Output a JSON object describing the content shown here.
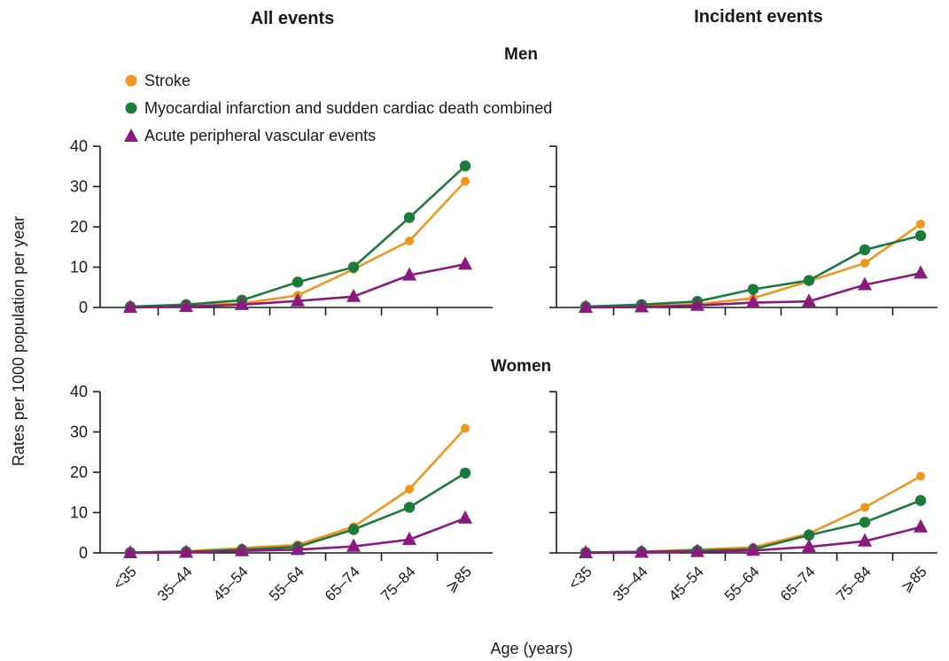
{
  "chart_data": {
    "type": "line",
    "column_titles": [
      "All events",
      "Incident events"
    ],
    "row_titles": [
      "Men",
      "Women"
    ],
    "categories": [
      "<35",
      "35–44",
      "45–54",
      "55–64",
      "65–74",
      "75–84",
      "⩾85"
    ],
    "xlabel": "Age (years)",
    "ylabel": "Rates per 1000 population per year",
    "ylim": [
      0,
      40
    ],
    "yticks": [
      0,
      10,
      20,
      30,
      40
    ],
    "grid": false,
    "legend": {
      "placement": "top-left",
      "entries": [
        {
          "name": "Stroke",
          "color": "#f0961e",
          "marker": "circle"
        },
        {
          "name": "Myocardial infarction and sudden cardiac death combined",
          "color": "#1b7a3c",
          "marker": "circle"
        },
        {
          "name": "Acute peripheral vascular events",
          "color": "#8b1a7e",
          "marker": "triangle"
        }
      ]
    },
    "panels": [
      {
        "column": "All events",
        "row": "Men",
        "series": [
          {
            "name": "Stroke",
            "values": [
              0.1,
              0.4,
              1.0,
              3.0,
              9.5,
              16.5,
              31.3
            ]
          },
          {
            "name": "Myocardial infarction and sudden cardiac death combined",
            "values": [
              0.2,
              0.7,
              1.8,
              6.3,
              10.0,
              22.3,
              35.1
            ]
          },
          {
            "name": "Acute peripheral vascular events",
            "values": [
              0.0,
              0.2,
              0.7,
              1.6,
              2.7,
              8.0,
              10.7
            ]
          }
        ]
      },
      {
        "column": "Incident events",
        "row": "Men",
        "series": [
          {
            "name": "Stroke",
            "values": [
              0.1,
              0.4,
              0.8,
              2.3,
              6.5,
              11.0,
              20.7
            ]
          },
          {
            "name": "Myocardial infarction and sudden cardiac death combined",
            "values": [
              0.2,
              0.7,
              1.5,
              4.5,
              6.7,
              14.3,
              17.8
            ]
          },
          {
            "name": "Acute peripheral vascular events",
            "values": [
              0.0,
              0.1,
              0.5,
              1.2,
              1.5,
              5.6,
              8.5
            ]
          }
        ]
      },
      {
        "column": "All events",
        "row": "Women",
        "series": [
          {
            "name": "Stroke",
            "values": [
              0.1,
              0.4,
              1.2,
              2.0,
              6.5,
              15.8,
              30.9
            ]
          },
          {
            "name": "Myocardial infarction and sudden cardiac death combined",
            "values": [
              0.1,
              0.3,
              0.8,
              1.5,
              5.8,
              11.3,
              19.8
            ]
          },
          {
            "name": "Acute peripheral vascular events",
            "values": [
              0.0,
              0.1,
              0.5,
              0.8,
              1.6,
              3.3,
              8.6
            ]
          }
        ]
      },
      {
        "column": "Incident events",
        "row": "Women",
        "series": [
          {
            "name": "Stroke",
            "values": [
              0.1,
              0.3,
              0.8,
              1.4,
              4.8,
              11.3,
              19.0
            ]
          },
          {
            "name": "Myocardial infarction and sudden cardiac death combined",
            "values": [
              0.1,
              0.3,
              0.6,
              0.9,
              4.4,
              7.6,
              13.0
            ]
          },
          {
            "name": "Acute peripheral vascular events",
            "values": [
              0.0,
              0.1,
              0.3,
              0.6,
              1.5,
              2.9,
              6.4
            ]
          }
        ]
      }
    ]
  }
}
